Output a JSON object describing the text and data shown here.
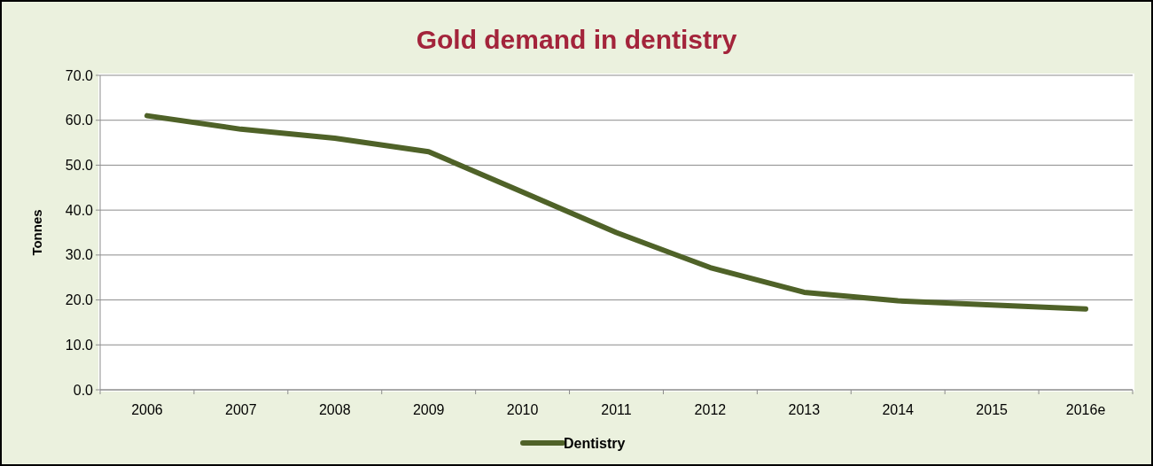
{
  "chart_data": {
    "type": "line",
    "title": "Gold demand in dentistry",
    "ylabel": "Tonnes",
    "categories": [
      "2006",
      "2007",
      "2008",
      "2009",
      "2010",
      "2011",
      "2012",
      "2013",
      "2014",
      "2015",
      "2016e"
    ],
    "series": [
      {
        "name": "Dentistry",
        "color": "#4f6228",
        "values": [
          61,
          58,
          56,
          53,
          44,
          35,
          27.2,
          21.7,
          19.8,
          18.9,
          18
        ]
      }
    ],
    "ylim": [
      0,
      70
    ],
    "yticks": [
      {
        "value": 0,
        "label": "0.0"
      },
      {
        "value": 10,
        "label": "10.0"
      },
      {
        "value": 20,
        "label": "20.0"
      },
      {
        "value": 30,
        "label": "30.0"
      },
      {
        "value": 40,
        "label": "40.0"
      },
      {
        "value": 50,
        "label": "50.0"
      },
      {
        "value": 60,
        "label": "60.0"
      },
      {
        "value": 70,
        "label": "70.0"
      }
    ],
    "grid": "y",
    "legend": "bottom",
    "marker": "none",
    "line_style": "solid"
  }
}
